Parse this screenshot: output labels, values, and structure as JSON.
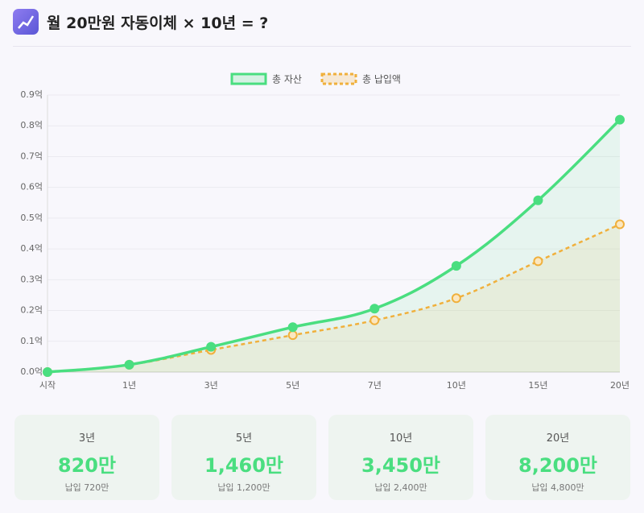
{
  "header": {
    "title": "월 20만원 자동이체 × 10년 = ?"
  },
  "chart_data": {
    "type": "line",
    "categories": [
      "시작",
      "1년",
      "3년",
      "5년",
      "7년",
      "10년",
      "15년",
      "20년"
    ],
    "series": [
      {
        "name": "총 자산",
        "color": "#4ade80",
        "fill": true,
        "dashed": false,
        "values": [
          0,
          0.024,
          0.082,
          0.146,
          0.206,
          0.345,
          0.558,
          0.82
        ]
      },
      {
        "name": "총 납입액",
        "color": "#f0b03c",
        "fill": true,
        "dashed": true,
        "values": [
          0,
          0.024,
          0.072,
          0.12,
          0.168,
          0.24,
          0.36,
          0.48
        ]
      }
    ],
    "ylim": [
      0,
      0.9
    ],
    "yticks": [
      {
        "value": 0,
        "label": "0.0억"
      },
      {
        "value": 0.1,
        "label": "0.1억"
      },
      {
        "value": 0.2,
        "label": "0.2억"
      },
      {
        "value": 0.3,
        "label": "0.3억"
      },
      {
        "value": 0.4,
        "label": "0.4억"
      },
      {
        "value": 0.5,
        "label": "0.5억"
      },
      {
        "value": 0.6,
        "label": "0.6억"
      },
      {
        "value": 0.7,
        "label": "0.7억"
      },
      {
        "value": 0.8,
        "label": "0.8억"
      },
      {
        "value": 0.9,
        "label": "0.9억"
      }
    ],
    "grid": true,
    "legend": "top"
  },
  "cards": [
    {
      "period": "3년",
      "total": "820만",
      "paid": "납입 720만"
    },
    {
      "period": "5년",
      "total": "1,460만",
      "paid": "납입 1,200만"
    },
    {
      "period": "10년",
      "total": "3,450만",
      "paid": "납입 2,400만"
    },
    {
      "period": "20년",
      "total": "8,200만",
      "paid": "납입 4,800만"
    }
  ]
}
